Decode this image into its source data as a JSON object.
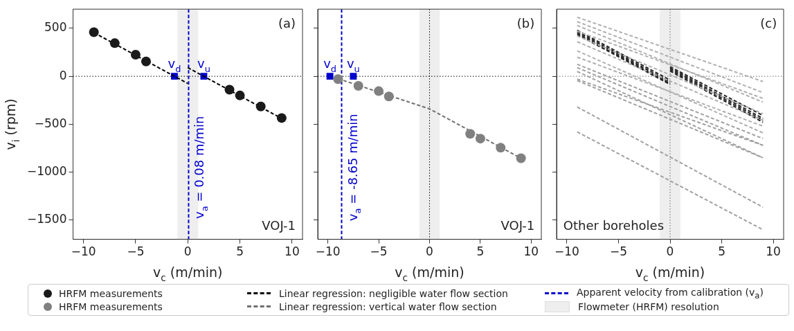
{
  "chart_data": [
    {
      "type": "scatter",
      "xlabel": "v$_{c}$ (m/min)",
      "ylabel": "v$_{i}$ (rpm)",
      "xlim": [
        -11,
        11
      ],
      "xticks": [
        -10,
        -5,
        0,
        5,
        10
      ],
      "ylim": [
        -1700,
        700
      ],
      "yticks": [
        -1500,
        -1000,
        -500,
        0,
        500
      ],
      "grid": false,
      "legend": "bottom",
      "marker": "circle",
      "series": [
        {
          "name": "HRFM measurements",
          "type": "scatter",
          "color": "#1a1a1a",
          "x": [
            -9,
            -7,
            -5,
            -4,
            4,
            5,
            7,
            9
          ],
          "values": [
            460,
            345,
            225,
            155,
            -140,
            -200,
            -315,
            -435
          ]
        },
        {
          "name": "Linear regression: negligible water flow section",
          "type": "line",
          "line_style": "dashed",
          "marker": "none",
          "color": "#000000",
          "x": [
            -9,
            0
          ],
          "values": [
            455,
            -75
          ]
        },
        {
          "type": "line",
          "line_style": "dashed",
          "marker": "none",
          "color": "#000000",
          "x": [
            0,
            9
          ],
          "values": [
            90,
            -440
          ]
        },
        {
          "type": "scatter",
          "marker": "square",
          "color": "#0000cc",
          "x": [
            -1.28,
            1.54
          ],
          "values": [
            0,
            0
          ]
        }
      ],
      "ref_lines": [
        {
          "axis": "x",
          "value": 0.08,
          "label": "Apparent velocity from calibration (v$_{a}$)",
          "color": "#0000cc",
          "line_style": "dashed"
        },
        {
          "axis": "y",
          "value": 0,
          "color": "#000000",
          "line_style": "dotted"
        }
      ],
      "bands": [
        {
          "axis": "x",
          "from": -1,
          "to": 1,
          "label": "Flowmeter (HRFM) resolution",
          "color": "#eeeeee"
        }
      ],
      "annotations": [
        "(a)",
        "VOJ-1",
        {
          "text": "v$_{a}$ = 0.08 m/min",
          "x": 0.08,
          "y": -950
        },
        {
          "text": "v$_{d}$",
          "x": -1.28,
          "y": 0
        },
        {
          "text": "v$_{u}$",
          "x": 1.54,
          "y": 0
        }
      ]
    },
    {
      "type": "scatter",
      "xlabel": "v$_{c}$ (m/min)",
      "xlim": [
        -11,
        11
      ],
      "xticks": [
        -10,
        -5,
        0,
        5,
        10
      ],
      "ylim": [
        -1700,
        700
      ],
      "yticks": [
        -1500,
        -1000,
        -500,
        0,
        500
      ],
      "tick_labels": "x",
      "grid": false,
      "legend": "bottom",
      "marker": "circle",
      "series": [
        {
          "name": "HRFM measurements",
          "type": "scatter",
          "color": "#808080",
          "x": [
            -9,
            -7,
            -5,
            -4,
            4,
            5,
            7,
            9
          ],
          "values": [
            -30,
            -100,
            -155,
            -210,
            -600,
            -650,
            -745,
            -855
          ]
        },
        {
          "name": "Linear regression: vertical water flow section",
          "type": "line",
          "line_style": "dashed",
          "marker": "none",
          "color": "#707070",
          "x": [
            -9,
            0,
            9
          ],
          "values": [
            -25,
            -340,
            -855
          ]
        },
        {
          "type": "scatter",
          "marker": "square",
          "color": "#0000cc",
          "x": [
            -9.8,
            -7.5
          ],
          "values": [
            0,
            0
          ]
        }
      ],
      "ref_lines": [
        {
          "axis": "x",
          "value": -8.65,
          "color": "#0000cc",
          "line_style": "dashed"
        },
        {
          "axis": "y",
          "value": 0,
          "color": "#000000",
          "line_style": "dotted"
        },
        {
          "axis": "x",
          "value": 0,
          "color": "#000000",
          "line_style": "dotted"
        }
      ],
      "bands": [
        {
          "axis": "x",
          "from": -1,
          "to": 1,
          "color": "#eeeeee"
        }
      ],
      "annotations": [
        "(b)",
        "VOJ-1",
        {
          "text": "v$_{a}$ = -8.65 m/min",
          "x": -8.65,
          "y": -950
        },
        {
          "text": "v$_{d}$",
          "x": -9.8,
          "y": 0
        },
        {
          "text": "v$_{u}$",
          "x": -7.5,
          "y": 0
        }
      ]
    },
    {
      "type": "line",
      "xlabel": "v$_{c}$ (m/min)",
      "xlim": [
        -11,
        11
      ],
      "xticks": [
        -10,
        -5,
        0,
        5,
        10
      ],
      "ylim": [
        -1700,
        700
      ],
      "yticks": [
        -1500,
        -1000,
        -500,
        0,
        500
      ],
      "tick_labels": "x",
      "grid": false,
      "line_style": "dashed",
      "marker": "none",
      "series": [
        {
          "color": "#b0b0b0",
          "x": [
            -9,
            9
          ],
          "values": [
            616,
            -55
          ]
        },
        {
          "color": "#b0b0b0",
          "x": [
            -9,
            9
          ],
          "values": [
            570,
            -170
          ]
        },
        {
          "color": "#b0b0b0",
          "x": [
            -9,
            9
          ],
          "values": [
            530,
            -270
          ]
        },
        {
          "color": "#b0b0b0",
          "x": [
            -9,
            9
          ],
          "values": [
            470,
            -230
          ]
        },
        {
          "color": "#b0b0b0",
          "x": [
            -9,
            9
          ],
          "values": [
            420,
            -390
          ]
        },
        {
          "color": "#b0b0b0",
          "x": [
            -9,
            9
          ],
          "values": [
            360,
            -460
          ]
        },
        {
          "color": "#b0b0b0",
          "x": [
            -9,
            9
          ],
          "values": [
            265,
            -590
          ]
        },
        {
          "color": "#b0b0b0",
          "x": [
            -9,
            9
          ],
          "values": [
            200,
            -520
          ]
        },
        {
          "color": "#a0a0a0",
          "x": [
            -9,
            9
          ],
          "values": [
            125,
            -650
          ]
        },
        {
          "color": "#a0a0a0",
          "x": [
            -9,
            9
          ],
          "values": [
            90,
            -720
          ]
        },
        {
          "color": "#a0a0a0",
          "x": [
            -9,
            9
          ],
          "values": [
            50,
            -850
          ]
        },
        {
          "color": "#a0a0a0",
          "x": [
            -9,
            9
          ],
          "values": [
            -30,
            -720
          ]
        },
        {
          "color": "#a0a0a0",
          "x": [
            -9,
            9
          ],
          "values": [
            -45,
            -850
          ]
        },
        {
          "color": "#a0a0a0",
          "x": [
            -9,
            9
          ],
          "values": [
            -320,
            -1365
          ]
        },
        {
          "color": "#a0a0a0",
          "x": [
            -9,
            9
          ],
          "values": [
            -580,
            -1600
          ]
        },
        {
          "color": "#222222",
          "x": [
            -9,
            0
          ],
          "values": [
            480,
            -40
          ]
        },
        {
          "color": "#222222",
          "x": [
            0,
            9
          ],
          "values": [
            100,
            -410
          ]
        },
        {
          "color": "#222222",
          "x": [
            -9,
            0
          ],
          "values": [
            465,
            -60
          ]
        },
        {
          "color": "#222222",
          "x": [
            0,
            9
          ],
          "values": [
            85,
            -440
          ]
        },
        {
          "color": "#222222",
          "x": [
            -9,
            0
          ],
          "values": [
            450,
            -75
          ]
        },
        {
          "color": "#222222",
          "x": [
            0,
            9
          ],
          "values": [
            70,
            -460
          ]
        },
        {
          "color": "#222222",
          "x": [
            -9,
            0
          ],
          "values": [
            435,
            -85
          ]
        },
        {
          "color": "#222222",
          "x": [
            0,
            9
          ],
          "values": [
            55,
            -480
          ]
        }
      ],
      "ref_lines": [
        {
          "axis": "y",
          "value": 0,
          "color": "#666666",
          "line_style": "dotted"
        },
        {
          "axis": "x",
          "value": 0,
          "color": "#666666",
          "line_style": "dotted"
        }
      ],
      "bands": [
        {
          "axis": "x",
          "from": -1,
          "to": 1,
          "color": "#eeeeee"
        }
      ],
      "annotations": [
        "(c)",
        "Other boreholes"
      ]
    }
  ]
}
